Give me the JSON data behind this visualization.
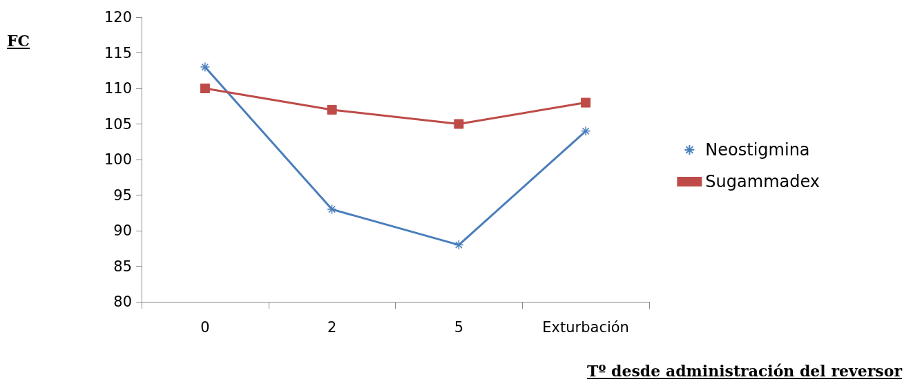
{
  "chart_data": {
    "type": "line",
    "ylabel": "FC",
    "xlabel": "Tº desde administración del reversor",
    "categories": [
      "0",
      "2",
      "5",
      "Exturbación"
    ],
    "series": [
      {
        "name": "Neostigmina",
        "color": "#4a7ebb",
        "marker": "cross",
        "values": [
          113,
          93,
          88,
          104
        ]
      },
      {
        "name": "Sugammadex",
        "color": "#be4b48",
        "marker": "square",
        "values": [
          110,
          107,
          105,
          108
        ]
      }
    ],
    "ylim": [
      80,
      120
    ],
    "yticks": [
      80,
      85,
      90,
      95,
      100,
      105,
      110,
      115,
      120
    ],
    "grid": false,
    "legend": "right",
    "line_style": "solid"
  }
}
